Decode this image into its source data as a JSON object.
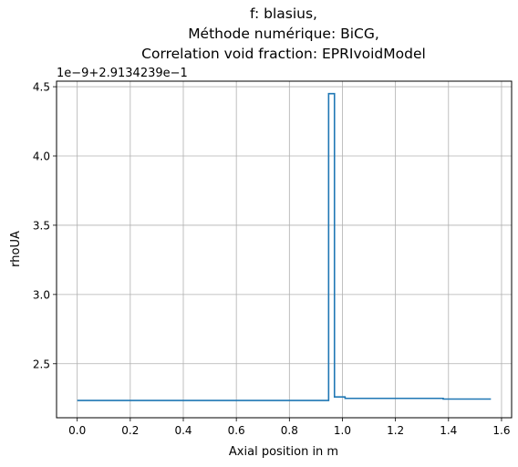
{
  "chart_data": {
    "type": "line",
    "title_lines": [
      "f: blasius,",
      "Méthode numérique: BiCG,",
      "Correlation void fraction: EPRIvoidModel"
    ],
    "xlabel": "Axial position in m",
    "ylabel": "rhoUA",
    "offset_text": "1e−9+2.9134239e−1",
    "xlim": [
      -0.078,
      1.638
    ],
    "ylim": [
      2.11,
      4.54
    ],
    "xticks": [
      0.0,
      0.2,
      0.4,
      0.6,
      0.8,
      1.0,
      1.2,
      1.4,
      1.6
    ],
    "xtick_labels": [
      "0.0",
      "0.2",
      "0.4",
      "0.6",
      "0.8",
      "1.0",
      "1.2",
      "1.4",
      "1.6"
    ],
    "yticks": [
      2.5,
      3.0,
      3.5,
      4.0,
      4.5
    ],
    "ytick_labels": [
      "2.5",
      "3.0",
      "3.5",
      "4.0",
      "4.5"
    ],
    "grid": true,
    "series": [
      {
        "color": "#1f77b4",
        "step": true,
        "x": [
          0.0,
          0.948,
          0.948,
          0.97,
          0.97,
          1.01,
          1.01,
          1.38,
          1.38,
          1.56
        ],
        "y": [
          2.235,
          2.235,
          4.45,
          4.45,
          2.26,
          2.26,
          2.25,
          2.25,
          2.245,
          2.245
        ]
      }
    ]
  }
}
